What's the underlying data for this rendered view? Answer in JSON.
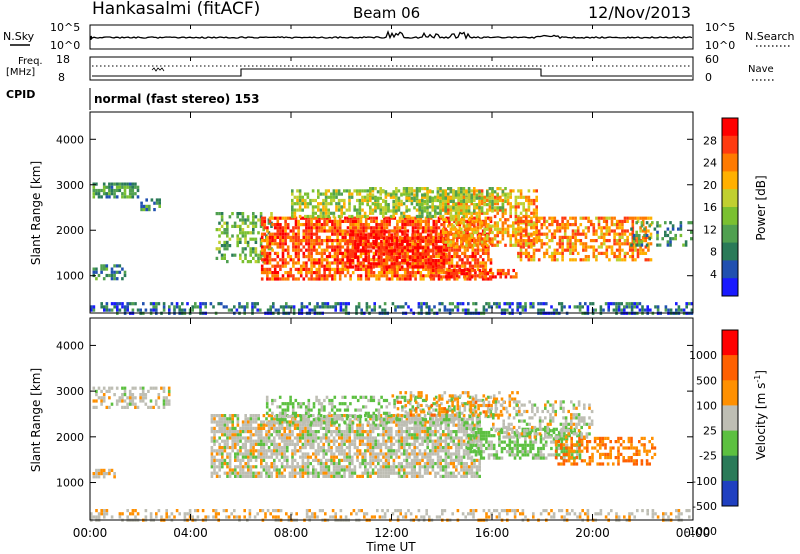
{
  "header": {
    "station": "Hankasalmi (fitACF)",
    "beam": "Beam 06",
    "date": "12/Nov/2013"
  },
  "top_panels": {
    "nsky_label": "N.Sky",
    "nsearch_label": "N.Search",
    "nsky_ticks": [
      "10^5",
      "10^0"
    ],
    "nsearch_ticks": [
      "10^5",
      "10^0"
    ],
    "freq_label": "Freq.",
    "freq_unit": "[MHz]",
    "freq_ticks": [
      "18",
      "8"
    ],
    "nave_label": "Nave",
    "nave_ticks": [
      "60",
      "0"
    ],
    "cpid_label": "CPID",
    "cpid_text": "normal (fast stereo) 153"
  },
  "chart_data": [
    {
      "type": "heatmap",
      "name": "power",
      "ylabel": "Slant Range [km]",
      "xlabel": "Time UT",
      "x_ticks": [
        "00:00",
        "04:00",
        "08:00",
        "12:00",
        "16:00",
        "20:00",
        "00:00"
      ],
      "xlim_hours": [
        0,
        24
      ],
      "y_ticks": [
        "1000",
        "2000",
        "3000",
        "4000"
      ],
      "ylim": [
        180,
        4600
      ],
      "colorbar": {
        "label": "Power [dB]",
        "ticks": [
          "4",
          "8",
          "12",
          "16",
          "20",
          "24",
          "28"
        ],
        "range": [
          0,
          30
        ],
        "colors": [
          "#1a1aff",
          "#2050b0",
          "#2a7a58",
          "#50a050",
          "#7ac030",
          "#c0d030",
          "#ffb000",
          "#ff7a00",
          "#ff3a10",
          "#ff0000"
        ]
      },
      "regions": [
        {
          "t0": 0.1,
          "t1": 1.9,
          "r0": 2750,
          "r1": 3050,
          "v": 10,
          "d": 0.75
        },
        {
          "t0": 2.0,
          "t1": 2.8,
          "r0": 2450,
          "r1": 2700,
          "v": 8,
          "d": 0.5
        },
        {
          "t0": 0.1,
          "t1": 1.4,
          "r0": 950,
          "r1": 1250,
          "v": 8,
          "d": 0.6
        },
        {
          "t0": 0.0,
          "t1": 24.0,
          "r0": 180,
          "r1": 420,
          "v": 6,
          "d": 0.45
        },
        {
          "t0": 5.0,
          "t1": 7.2,
          "r0": 1300,
          "r1": 2400,
          "v": 12,
          "d": 0.45
        },
        {
          "t0": 6.8,
          "t1": 16.0,
          "r0": 950,
          "r1": 2300,
          "v": 24,
          "d": 0.75
        },
        {
          "t0": 8.0,
          "t1": 15.0,
          "r0": 2300,
          "r1": 2900,
          "v": 15,
          "d": 0.55
        },
        {
          "t0": 10.2,
          "t1": 14.2,
          "r0": 1200,
          "r1": 2000,
          "v": 28,
          "d": 0.6
        },
        {
          "t0": 14.0,
          "t1": 17.8,
          "r0": 1700,
          "r1": 2900,
          "v": 20,
          "d": 0.6
        },
        {
          "t0": 11.0,
          "t1": 16.5,
          "r0": 2450,
          "r1": 2950,
          "v": 14,
          "d": 0.45
        },
        {
          "t0": 17.0,
          "t1": 22.3,
          "r0": 1350,
          "r1": 2300,
          "v": 22,
          "d": 0.6
        },
        {
          "t0": 13.5,
          "t1": 17.0,
          "r0": 950,
          "r1": 1150,
          "v": 26,
          "d": 0.5
        },
        {
          "t0": 21.5,
          "t1": 24.0,
          "r0": 1700,
          "r1": 2200,
          "v": 9,
          "d": 0.3
        }
      ]
    },
    {
      "type": "heatmap",
      "name": "velocity",
      "ylabel": "Slant Range [km]",
      "xlabel": "Time UT",
      "x_ticks": [
        "00:00",
        "04:00",
        "08:00",
        "12:00",
        "16:00",
        "20:00",
        "00:00"
      ],
      "xlim_hours": [
        0,
        24
      ],
      "y_ticks": [
        "1000",
        "2000",
        "3000",
        "4000"
      ],
      "ylim": [
        180,
        4600
      ],
      "colorbar": {
        "label": "Velocity [m s^-1]",
        "ticks": [
          "1000",
          "500",
          "100",
          "25",
          "-25",
          "-100",
          "-500",
          "-1000"
        ],
        "range": [
          -1200,
          1200
        ],
        "colors": [
          "#2040c0",
          "#2a7a58",
          "#5cc040",
          "#bebeb4",
          "#ff9000",
          "#ff6000",
          "#ff0000"
        ]
      },
      "regions": [
        {
          "t0": 0.1,
          "t1": 3.2,
          "r0": 2650,
          "r1": 3100,
          "v": 0,
          "d": 0.5
        },
        {
          "t0": 0.1,
          "t1": 1.0,
          "r0": 1100,
          "r1": 1300,
          "v": 150,
          "d": 0.6
        },
        {
          "t0": 0.0,
          "t1": 24.0,
          "r0": 180,
          "r1": 420,
          "v": 120,
          "d": 0.35
        },
        {
          "t0": 4.8,
          "t1": 15.5,
          "r0": 1100,
          "r1": 2500,
          "v": 0,
          "d": 0.75
        },
        {
          "t0": 7.0,
          "t1": 16.0,
          "r0": 2300,
          "r1": 2900,
          "v": -200,
          "d": 0.35
        },
        {
          "t0": 15.0,
          "t1": 19.5,
          "r0": 1500,
          "r1": 2200,
          "v": -250,
          "d": 0.6
        },
        {
          "t0": 18.5,
          "t1": 22.5,
          "r0": 1400,
          "r1": 2000,
          "v": 500,
          "d": 0.45
        },
        {
          "t0": 12.0,
          "t1": 17.0,
          "r0": 2500,
          "r1": 3000,
          "v": 300,
          "d": 0.35
        },
        {
          "t0": 16.0,
          "t1": 20.0,
          "r0": 2000,
          "r1": 2800,
          "v": 0,
          "d": 0.4
        }
      ]
    }
  ],
  "colors": {
    "axis": "#000000",
    "background": "#ffffff"
  }
}
